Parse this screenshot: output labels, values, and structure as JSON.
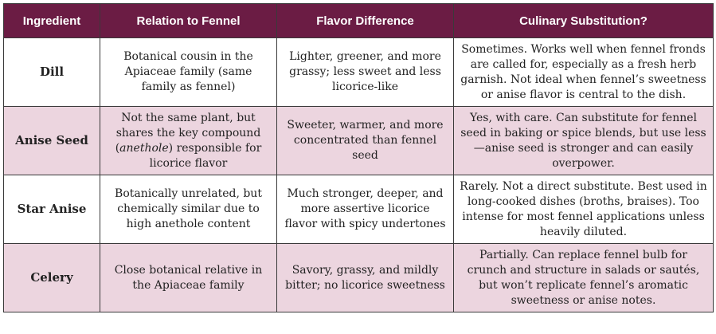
{
  "headers": {
    "ingredient": "Ingredient",
    "relation": "Relation to Fennel",
    "flavor": "Flavor Difference",
    "substitution": "Culinary Substitution?"
  },
  "rows": [
    {
      "ingredient": "Dill",
      "relation": "Botanical cousin in the Apiaceae family (same family as fennel)",
      "flavor": "Lighter, greener, and more grassy; less sweet and less licorice-like",
      "substitution": "Sometimes. Works well when fennel fronds are called for, especially as a fresh herb garnish. Not ideal when fennel’s sweetness or anise flavor is central to the dish."
    },
    {
      "ingredient": "Anise Seed",
      "relation_before": "Not the same plant, but shares the key compound (",
      "relation_em": "anethole",
      "relation_after": ") responsible for licorice flavor",
      "flavor": "Sweeter, warmer, and more concentrated than fennel seed",
      "substitution": "Yes, with care. Can substitute for fennel seed in baking or spice blends, but use less—anise seed is stronger and can easily overpower."
    },
    {
      "ingredient": "Star Anise",
      "relation": "Botanically unrelated, but chemically similar due to high anethole content",
      "flavor": "Much stronger, deeper, and more assertive licorice flavor with spicy undertones",
      "substitution": "Rarely. Not a direct substitute. Best used in long-cooked dishes (broths, braises). Too intense for most fennel applications unless heavily diluted."
    },
    {
      "ingredient": "Celery",
      "relation": "Close botanical relative in the Apiaceae family",
      "flavor": "Savory, grassy, and  mildly bitter; no licorice sweetness",
      "substitution": "Partially. Can replace fennel bulb for crunch and structure in salads or sautés, but won’t replicate fennel’s aromatic sweetness or anise notes."
    }
  ],
  "colors": {
    "header_bg": "#6b1c44",
    "header_text": "#ffffff",
    "shaded_row": "#ecd5df",
    "border": "#3a3a3a"
  }
}
